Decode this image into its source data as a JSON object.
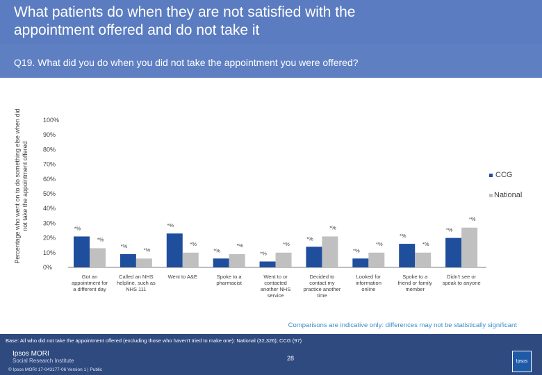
{
  "header": {
    "title": "What patients do when they are not satisfied with the\nappointment offered and do not take it",
    "question": "Q19. What did you do when you did not take the appointment you were offered?"
  },
  "chart_data": {
    "type": "bar",
    "ylabel": "Percentage who went on to do something else when did\nnot take the appointment offered",
    "ylim": [
      0,
      100
    ],
    "yticks": [
      "0%",
      "10%",
      "20%",
      "30%",
      "40%",
      "50%",
      "60%",
      "70%",
      "80%",
      "90%",
      "100%"
    ],
    "categories": [
      [
        "Got an",
        "appointment for",
        "a different day"
      ],
      [
        "Called an NHS",
        "helpline, such as",
        "NHS 111"
      ],
      [
        "Went to A&E"
      ],
      [
        "Spoke to a",
        "pharmacist"
      ],
      [
        "Went to or",
        "contacted",
        "another NHS",
        "service"
      ],
      [
        "Decided to",
        "contact my",
        "practice another",
        "time"
      ],
      [
        "Looked for",
        "information",
        "online"
      ],
      [
        "Spoke to a",
        "friend or family",
        "member"
      ],
      [
        "Didn't see or",
        "speak to anyone"
      ]
    ],
    "series": [
      {
        "name": "CCG",
        "color": "#1f4e9c",
        "values": [
          21,
          9,
          23,
          6,
          4,
          14,
          6,
          16,
          20
        ],
        "labels": [
          "*%",
          "*%",
          "*%",
          "*%",
          "*%",
          "*%",
          "*%",
          "*%",
          "*%"
        ]
      },
      {
        "name": "National",
        "color": "#c0c0c0",
        "values": [
          13,
          6,
          10,
          9,
          10,
          21,
          10,
          10,
          27
        ],
        "labels": [
          "*%",
          "*%",
          "*%",
          "*%",
          "*%",
          "*%",
          "*%",
          "*%",
          "*%"
        ]
      }
    ]
  },
  "note": "Comparisons are indicative only: differences may not be statistically significant",
  "footer": {
    "base": "Base: All who did not take the appointment offered (excluding those who haven't tried to make one): National (32,326); CCG (97)",
    "logo_line1": "Ipsos MORI",
    "logo_line2": "Social Research Institute",
    "page_number": "28",
    "copyright": "© Ipsos MORI    17-043177-06 Version 1 | Public",
    "badge": "Ipsos"
  }
}
